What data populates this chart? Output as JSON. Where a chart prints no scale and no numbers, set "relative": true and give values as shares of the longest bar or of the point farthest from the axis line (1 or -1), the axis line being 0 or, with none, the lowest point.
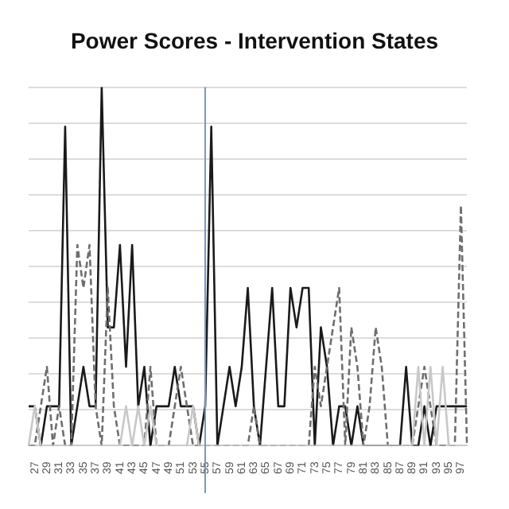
{
  "chart_data": {
    "type": "line",
    "title": "Power Scores - Intervention States",
    "relative": true,
    "grid": "y",
    "legend": false,
    "categories": [
      null,
      "27",
      null,
      "29",
      null,
      "31",
      null,
      "33",
      null,
      "35",
      null,
      "37",
      null,
      "39",
      null,
      "41",
      null,
      "43",
      null,
      "45",
      null,
      "47",
      null,
      "49",
      null,
      "51",
      null,
      "53",
      null,
      "55",
      null,
      "57",
      null,
      "59",
      null,
      "61",
      null,
      "63",
      null,
      "65",
      null,
      "67",
      null,
      "69",
      null,
      "71",
      null,
      "73",
      null,
      "75",
      null,
      "77",
      null,
      "79",
      null,
      "81",
      null,
      "83",
      null,
      "85",
      null,
      "87",
      null,
      "89",
      null,
      "91",
      null,
      "93",
      null,
      "95",
      null,
      "97",
      null
    ],
    "series": [
      {
        "color": "#c8c8c8",
        "line_style": "solid",
        "values": [
          0,
          0.11,
          0,
          0,
          0,
          0,
          0,
          0,
          0,
          0,
          0,
          0,
          0,
          0,
          0,
          0,
          0.11,
          0,
          0.11,
          0,
          0.11,
          0,
          0,
          0,
          0,
          0,
          0,
          0.11,
          0,
          0,
          0,
          0,
          0,
          0,
          0,
          0,
          0,
          0,
          0,
          0,
          0,
          0,
          0,
          0,
          0,
          0,
          0,
          0,
          0,
          0,
          0,
          0,
          0,
          0,
          0,
          0,
          0,
          0,
          0,
          0,
          0,
          0,
          0,
          0,
          0.22,
          0,
          0.22,
          0,
          0.22,
          0,
          0,
          0,
          0
        ]
      },
      {
        "color": "#6e6e6e",
        "line_style": "dashed",
        "values": [
          0,
          0,
          0.11,
          0.22,
          0,
          0.11,
          0,
          0,
          0.56,
          0.44,
          0.56,
          0.11,
          0,
          0.44,
          0.11,
          0,
          0,
          0,
          0,
          0,
          0.22,
          0,
          0,
          0,
          0.11,
          0.22,
          0.11,
          0,
          0,
          0,
          0,
          0,
          0,
          0,
          0,
          0,
          0,
          0.11,
          0,
          0,
          0,
          0,
          0,
          0,
          0,
          0,
          0,
          0.22,
          0.11,
          0.22,
          0.33,
          0.44,
          0,
          0.33,
          0.22,
          0,
          0.11,
          0.33,
          0.22,
          0,
          0,
          0,
          0,
          0,
          0.11,
          0.22,
          0.11,
          0,
          0,
          0,
          0,
          0.67,
          0
        ]
      },
      {
        "color": "#1a1a1a",
        "line_style": "solid",
        "values": [
          0.11,
          0.11,
          0,
          0.11,
          0.11,
          0.11,
          0.89,
          0,
          0.11,
          0.22,
          0.11,
          0.11,
          1,
          0.33,
          0.33,
          0.56,
          0.22,
          0.56,
          0.11,
          0.22,
          0,
          0.11,
          0.11,
          0.11,
          0.22,
          0.11,
          0.11,
          0.11,
          0,
          0.11,
          0.89,
          0,
          0.11,
          0.22,
          0.11,
          0.22,
          0.44,
          0.11,
          0,
          0.22,
          0.44,
          0.11,
          0.11,
          0.44,
          0.33,
          0.44,
          0.44,
          0,
          0.33,
          0.22,
          0,
          0.11,
          0.11,
          0,
          0.11,
          0,
          0,
          0,
          0,
          0,
          0,
          0,
          0.22,
          0,
          0,
          0.11,
          0,
          0.11,
          0.11,
          0.11,
          0.11,
          0.11,
          0.11
        ]
      }
    ],
    "ref_lines": [
      {
        "axis": "x",
        "value": "55",
        "color": "#7f96b8"
      }
    ]
  }
}
